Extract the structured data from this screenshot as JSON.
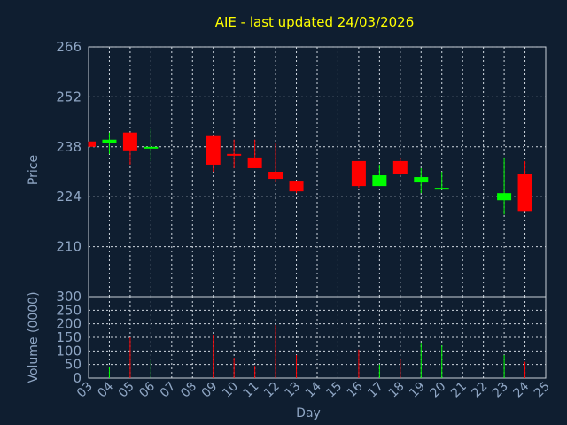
{
  "chart_data": [
    {
      "type": "candlestick",
      "title": "AIE - last updated 24/03/2026",
      "ylabel": "Price",
      "ylim": [
        196,
        266
      ],
      "yticks": [
        "266",
        "252",
        "238",
        "224",
        "210"
      ],
      "grid": true,
      "colors": {
        "up": "#00ff00",
        "down": "#ff0000",
        "grid": "#d0d8e0",
        "background": "#0f1e30",
        "text": "#8fa6c4",
        "title": "#ffff00"
      },
      "candles": [
        {
          "day": "03",
          "open": 239.5,
          "high": 239.5,
          "low": 238.0,
          "close": 238.0
        },
        {
          "day": "04",
          "open": 239.0,
          "high": 242.0,
          "low": 236.0,
          "close": 240.0
        },
        {
          "day": "05",
          "open": 242.0,
          "high": 242.0,
          "low": 233.0,
          "close": 237.0
        },
        {
          "day": "06",
          "open": 237.5,
          "high": 243.0,
          "low": 234.0,
          "close": 238.0
        },
        {
          "day": "09",
          "open": 241.0,
          "high": 241.0,
          "low": 231.0,
          "close": 233.0
        },
        {
          "day": "10",
          "open": 236.0,
          "high": 240.0,
          "low": 232.0,
          "close": 235.5
        },
        {
          "day": "11",
          "open": 235.0,
          "high": 240.0,
          "low": 232.0,
          "close": 232.0
        },
        {
          "day": "12",
          "open": 231.0,
          "high": 239.0,
          "low": 228.0,
          "close": 229.0
        },
        {
          "day": "13",
          "open": 228.5,
          "high": 228.5,
          "low": 225.0,
          "close": 225.5
        },
        {
          "day": "16",
          "open": 234.0,
          "high": 234.0,
          "low": 226.5,
          "close": 227.0
        },
        {
          "day": "17",
          "open": 227.0,
          "high": 233.0,
          "low": 227.0,
          "close": 230.0
        },
        {
          "day": "18",
          "open": 234.0,
          "high": 235.0,
          "low": 230.0,
          "close": 230.5
        },
        {
          "day": "19",
          "open": 228.0,
          "high": 232.0,
          "low": 225.0,
          "close": 229.5
        },
        {
          "day": "20",
          "open": 226.0,
          "high": 231.0,
          "low": 226.0,
          "close": 226.5
        },
        {
          "day": "23",
          "open": 223.0,
          "high": 235.0,
          "low": 219.0,
          "close": 225.0
        },
        {
          "day": "24",
          "open": 230.5,
          "high": 234.0,
          "low": 220.0,
          "close": 220.0
        }
      ],
      "x_categories": [
        "03",
        "04",
        "05",
        "06",
        "07",
        "08",
        "09",
        "10",
        "11",
        "12",
        "13",
        "14",
        "15",
        "16",
        "17",
        "18",
        "19",
        "20",
        "21",
        "22",
        "23",
        "24",
        "25"
      ]
    },
    {
      "type": "bar",
      "ylabel": "Volume (0000)",
      "xlabel": "Day",
      "ylim": [
        0,
        300
      ],
      "yticks": [
        "0",
        "50",
        "100",
        "150",
        "200",
        "250",
        "300"
      ],
      "grid": true,
      "x_categories": [
        "03",
        "04",
        "05",
        "06",
        "07",
        "08",
        "09",
        "10",
        "11",
        "12",
        "13",
        "14",
        "15",
        "16",
        "17",
        "18",
        "19",
        "20",
        "21",
        "22",
        "23",
        "24",
        "25"
      ],
      "volumes": [
        {
          "day": "04",
          "value": 40,
          "color": "#00ff00"
        },
        {
          "day": "05",
          "value": 150,
          "color": "#ff0000"
        },
        {
          "day": "06",
          "value": 65,
          "color": "#00ff00"
        },
        {
          "day": "09",
          "value": 160,
          "color": "#ff0000"
        },
        {
          "day": "10",
          "value": 75,
          "color": "#ff0000"
        },
        {
          "day": "11",
          "value": 45,
          "color": "#ff0000"
        },
        {
          "day": "12",
          "value": 195,
          "color": "#ff0000"
        },
        {
          "day": "13",
          "value": 85,
          "color": "#ff0000"
        },
        {
          "day": "16",
          "value": 105,
          "color": "#ff0000"
        },
        {
          "day": "17",
          "value": 50,
          "color": "#00ff00"
        },
        {
          "day": "18",
          "value": 70,
          "color": "#ff0000"
        },
        {
          "day": "19",
          "value": 130,
          "color": "#00ff00"
        },
        {
          "day": "20",
          "value": 120,
          "color": "#00ff00"
        },
        {
          "day": "23",
          "value": 85,
          "color": "#00ff00"
        },
        {
          "day": "24",
          "value": 60,
          "color": "#ff0000"
        }
      ]
    }
  ]
}
